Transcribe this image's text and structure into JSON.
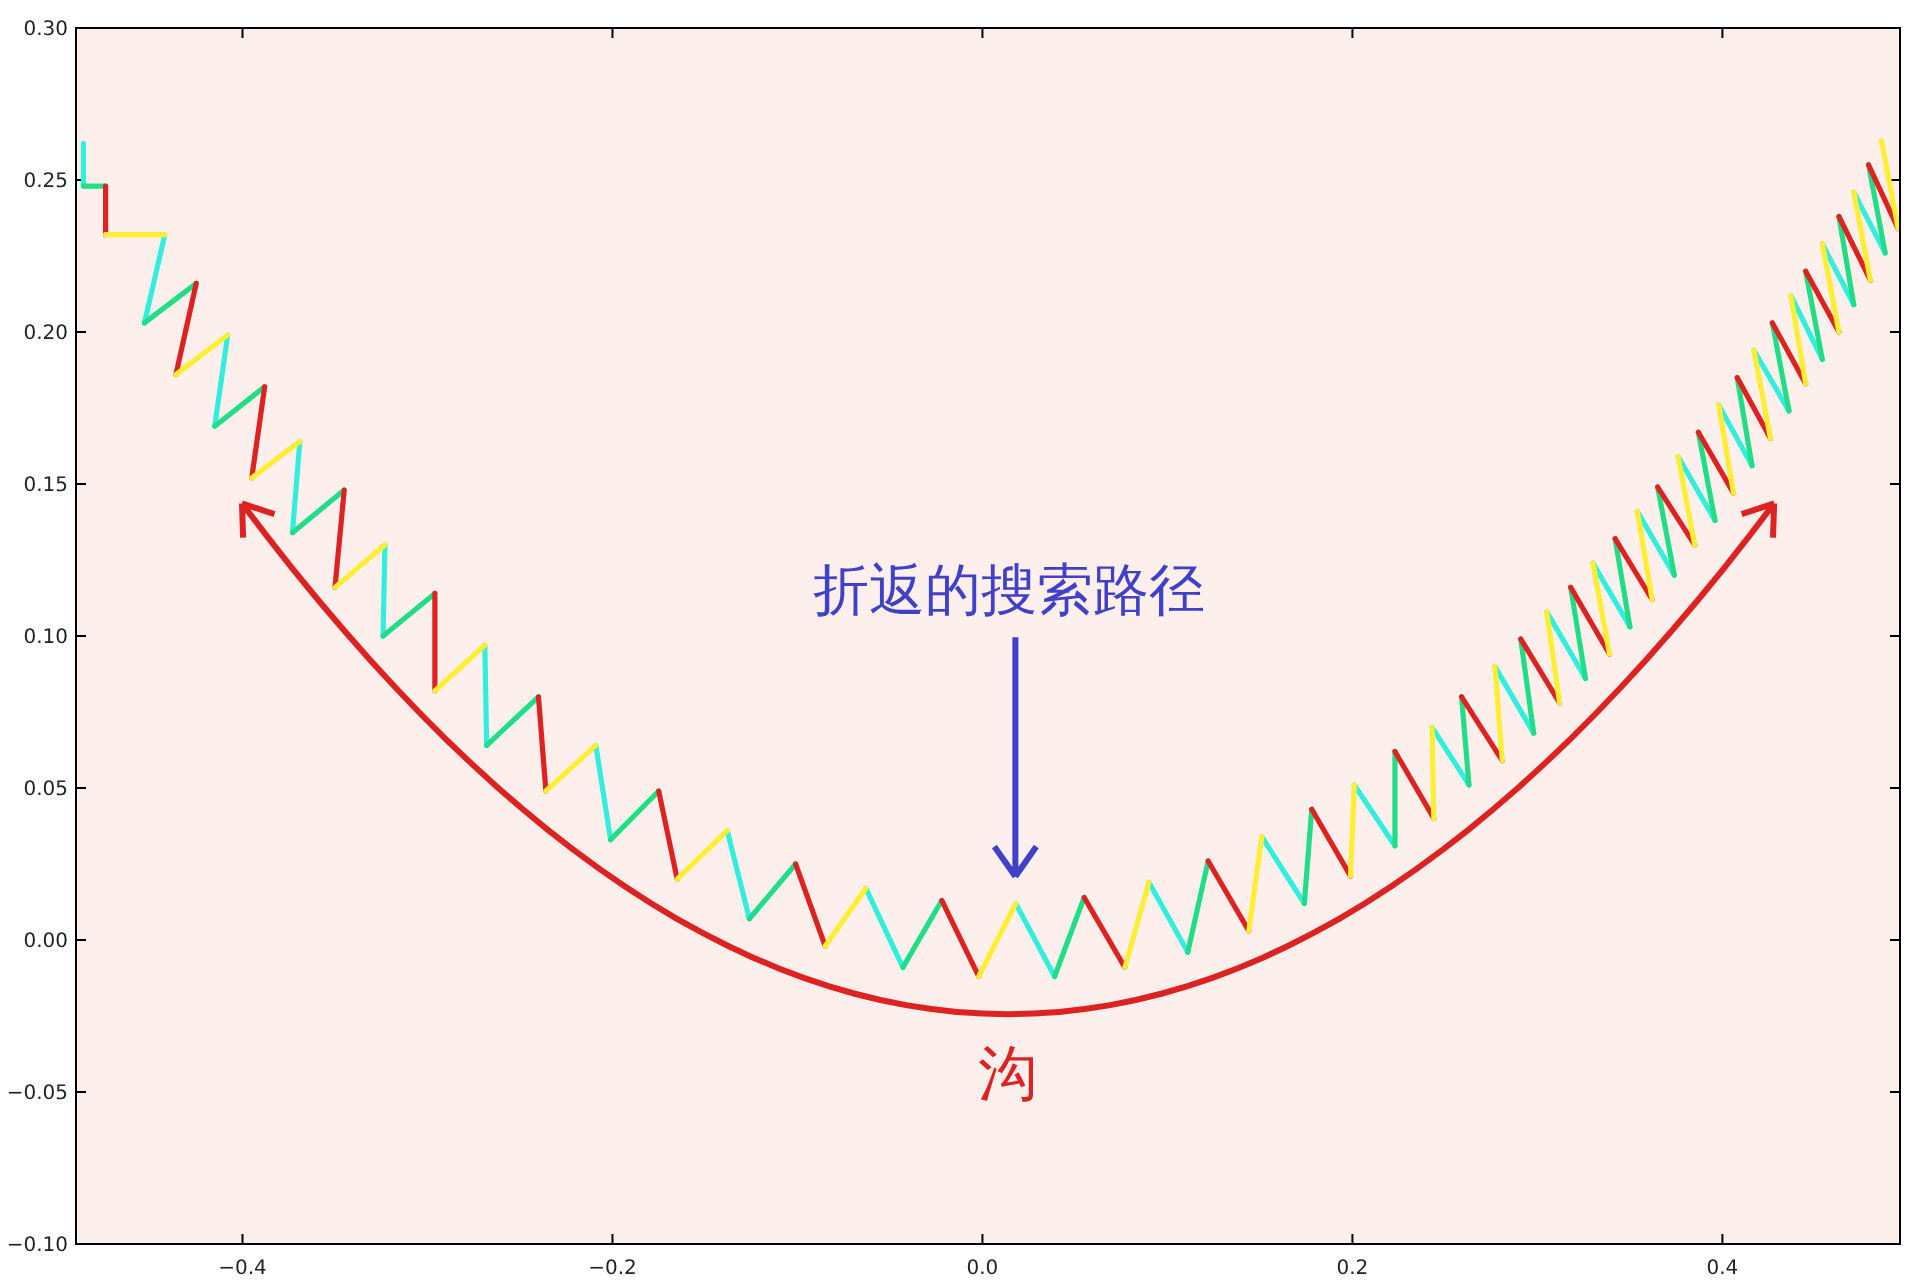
{
  "chart_data": {
    "type": "line",
    "x": [
      -0.486,
      -0.486,
      -0.474,
      -0.474,
      -0.442,
      -0.453,
      -0.425,
      -0.436,
      -0.408,
      -0.415,
      -0.388,
      -0.395,
      -0.369,
      -0.373,
      -0.345,
      -0.35,
      -0.323,
      -0.324,
      -0.296,
      -0.296,
      -0.269,
      -0.268,
      -0.24,
      -0.236,
      -0.209,
      -0.201,
      -0.175,
      -0.165,
      -0.138,
      -0.126,
      -0.101,
      -0.085,
      -0.063,
      -0.043,
      -0.022,
      -0.002,
      0.018,
      0.039,
      0.055,
      0.077,
      0.09,
      0.111,
      0.122,
      0.144,
      0.151,
      0.174,
      0.178,
      0.199,
      0.201,
      0.223,
      0.223,
      0.244,
      0.243,
      0.263,
      0.259,
      0.281,
      0.277,
      0.298,
      0.291,
      0.312,
      0.305,
      0.326,
      0.318,
      0.339,
      0.33,
      0.35,
      0.342,
      0.362,
      0.354,
      0.374,
      0.365,
      0.385,
      0.376,
      0.396,
      0.387,
      0.406,
      0.398,
      0.416,
      0.408,
      0.426,
      0.417,
      0.436,
      0.427,
      0.445,
      0.437,
      0.454,
      0.445,
      0.463,
      0.454,
      0.471,
      0.463,
      0.48,
      0.471,
      0.488,
      0.479,
      0.495,
      0.486
    ],
    "series": [
      {
        "color": "#33eedd",
        "values": [
          0.262,
          0.248,
          null,
          null,
          0.232,
          0.203,
          null,
          null,
          0.199,
          0.169,
          null,
          null,
          0.164,
          0.134,
          null,
          null,
          0.13,
          0.1,
          null,
          null,
          0.097,
          0.064,
          null,
          null,
          0.064,
          0.033,
          null,
          null,
          0.036,
          0.007,
          null,
          null,
          0.017,
          -0.009,
          null,
          null,
          0.012,
          -0.012,
          null,
          null,
          0.019,
          -0.004,
          null,
          null,
          0.034,
          0.012,
          null,
          null,
          0.051,
          0.031,
          null,
          null,
          0.07,
          0.051,
          null,
          null,
          0.09,
          0.068,
          null,
          null,
          0.108,
          0.086,
          null,
          null,
          0.124,
          0.103,
          null,
          null,
          0.141,
          0.12,
          null,
          null,
          0.159,
          0.138,
          null,
          null,
          0.176,
          0.156,
          null,
          null,
          0.194,
          0.174,
          null,
          null,
          0.212,
          0.191,
          null,
          null,
          0.229,
          0.209,
          null,
          null,
          0.246,
          0.226,
          null,
          null,
          null
        ]
      },
      {
        "color": "#22dd88",
        "values": [
          null,
          0.248,
          0.248,
          null,
          null,
          0.203,
          0.216,
          null,
          null,
          0.169,
          0.182,
          null,
          null,
          0.134,
          0.148,
          null,
          null,
          0.1,
          0.114,
          null,
          null,
          0.064,
          0.08,
          null,
          null,
          0.033,
          0.049,
          null,
          null,
          0.007,
          0.025,
          null,
          null,
          -0.009,
          0.013,
          null,
          null,
          -0.012,
          0.014,
          null,
          null,
          -0.004,
          0.026,
          null,
          null,
          0.012,
          0.043,
          null,
          null,
          0.031,
          0.062,
          null,
          null,
          0.051,
          0.08,
          null,
          null,
          0.068,
          0.099,
          null,
          null,
          0.086,
          0.116,
          null,
          null,
          0.103,
          0.132,
          null,
          null,
          0.12,
          0.149,
          null,
          null,
          0.138,
          0.167,
          null,
          null,
          0.156,
          0.185,
          null,
          null,
          0.174,
          0.203,
          null,
          null,
          0.191,
          0.22,
          null,
          null,
          0.209,
          0.238,
          null,
          null,
          0.226,
          0.255,
          null,
          null
        ]
      },
      {
        "color": "#dd2222",
        "values": [
          null,
          null,
          0.248,
          0.232,
          null,
          null,
          0.216,
          0.186,
          null,
          null,
          0.182,
          0.152,
          null,
          null,
          0.148,
          0.116,
          null,
          null,
          0.114,
          0.082,
          null,
          null,
          0.08,
          0.049,
          null,
          null,
          0.049,
          0.02,
          null,
          null,
          0.025,
          -0.002,
          null,
          null,
          0.013,
          -0.012,
          null,
          null,
          0.014,
          -0.009,
          null,
          null,
          0.026,
          0.003,
          null,
          null,
          0.043,
          0.021,
          null,
          null,
          0.062,
          0.04,
          null,
          null,
          0.08,
          0.059,
          null,
          null,
          0.099,
          0.078,
          null,
          null,
          0.116,
          0.094,
          null,
          null,
          0.132,
          0.112,
          null,
          null,
          0.149,
          0.13,
          null,
          null,
          0.167,
          0.147,
          null,
          null,
          0.185,
          0.165,
          null,
          null,
          0.203,
          0.183,
          null,
          null,
          0.22,
          0.2,
          null,
          null,
          0.238,
          0.217,
          null,
          null,
          0.255,
          0.234,
          null
        ]
      },
      {
        "color": "#ffee33",
        "values": [
          null,
          null,
          null,
          0.232,
          0.232,
          null,
          null,
          0.186,
          0.199,
          null,
          null,
          0.152,
          0.164,
          null,
          null,
          0.116,
          0.13,
          null,
          null,
          0.082,
          0.097,
          null,
          null,
          0.049,
          0.064,
          null,
          null,
          0.02,
          0.036,
          null,
          null,
          -0.002,
          0.017,
          null,
          null,
          -0.012,
          0.012,
          null,
          null,
          -0.009,
          0.019,
          null,
          null,
          0.003,
          0.034,
          null,
          null,
          0.021,
          0.051,
          null,
          null,
          0.04,
          0.07,
          null,
          null,
          0.059,
          0.09,
          null,
          null,
          0.078,
          0.108,
          null,
          null,
          0.094,
          0.124,
          null,
          null,
          0.112,
          0.141,
          null,
          null,
          0.13,
          0.159,
          null,
          null,
          0.147,
          0.176,
          null,
          null,
          0.165,
          0.194,
          null,
          null,
          0.183,
          0.212,
          null,
          null,
          0.2,
          0.229,
          null,
          null,
          0.217,
          0.246,
          null,
          null,
          0.234,
          0.263
        ]
      }
    ],
    "xlim": [
      -0.49,
      0.496
    ],
    "xticks": [
      {
        "value": -0.4,
        "label": "−0.4"
      },
      {
        "value": -0.2,
        "label": "−0.2"
      },
      {
        "value": 0,
        "label": "0.0"
      },
      {
        "value": 0.2,
        "label": "0.2"
      },
      {
        "value": 0.4,
        "label": "0.4"
      }
    ],
    "ylim": [
      -0.1,
      0.3
    ],
    "yticks": [
      {
        "value": -0.1,
        "label": "−0.10"
      },
      {
        "value": -0.05,
        "label": "−0.05"
      },
      {
        "value": 0,
        "label": "0.00"
      },
      {
        "value": 0.05,
        "label": "0.05"
      },
      {
        "value": 0.1,
        "label": "0.10"
      },
      {
        "value": 0.15,
        "label": "0.15"
      },
      {
        "value": 0.2,
        "label": "0.20"
      },
      {
        "value": 0.25,
        "label": "0.25"
      },
      {
        "value": 0.3,
        "label": "0.30"
      }
    ],
    "annotations": [
      "折返的搜索路径",
      "沟"
    ],
    "grid": false,
    "marker": "none",
    "line_style": "solid"
  }
}
